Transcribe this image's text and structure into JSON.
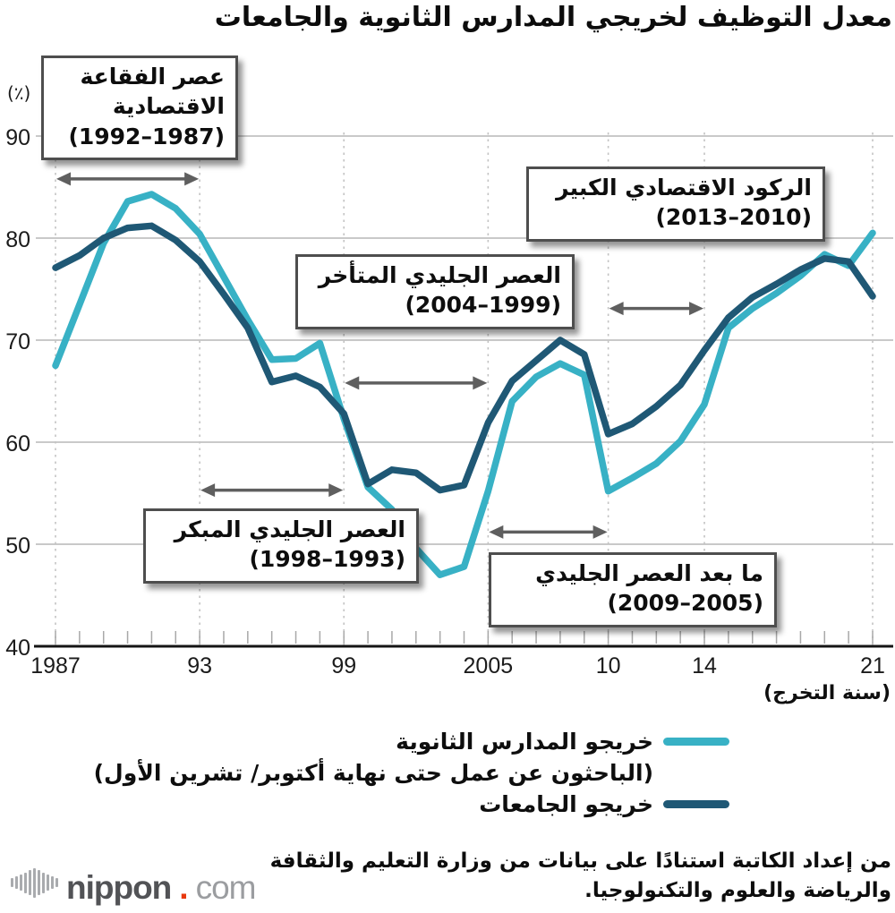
{
  "title": "معدل التوظيف لخريجي المدارس الثانوية والجامعات",
  "y_axis": {
    "unit": "(٪)",
    "tick_labels": [
      "40",
      "50",
      "60",
      "70",
      "80",
      "90"
    ]
  },
  "x_axis": {
    "title": "(سنة التخرج)"
  },
  "legend": [
    {
      "label": "خريجو المدارس الثانوية",
      "sub": "(الباحثون عن عمل حتى نهاية أكتوبر/ تشرين الأول)",
      "color": "#38b1c5"
    },
    {
      "label": "خريجو الجامعات",
      "sub": "",
      "color": "#1f5875"
    }
  ],
  "annotations": [
    {
      "label": "عصر الفقاعة الاقتصادية",
      "years": "(1987–1992)",
      "arrow": {
        "from": 1987,
        "to": 1993,
        "v": 85.8
      }
    },
    {
      "label": "العصر الجليدي المبكر",
      "years": "(1993–1998)",
      "arrow": {
        "from": 1993,
        "to": 1999,
        "v": 55.3
      }
    },
    {
      "label": "العصر الجليدي المتأخر",
      "years": "(1999–2004)",
      "arrow": {
        "from": 1999,
        "to": 2005,
        "v": 65.8
      }
    },
    {
      "label": "ما بعد العصر الجليدي",
      "years": "(2005–2009)",
      "arrow": {
        "from": 2005,
        "to": 2010,
        "v": 51.2
      }
    },
    {
      "label": "الركود الاقتصادي الكبير",
      "years": "(2010–2013)",
      "arrow": {
        "from": 2010,
        "to": 2014,
        "v": 73.1
      }
    }
  ],
  "footer": {
    "source": "من إعداد الكاتبة استنادًا على بيانات من وزارة التعليم والثقافة والرياضة والعلوم والتكنولوجيا.",
    "logo": {
      "name": "nippon",
      "dot": ".",
      "tld": "com"
    }
  },
  "chart_data": {
    "type": "line",
    "title": "معدل التوظيف لخريجي المدارس الثانوية والجامعات",
    "xlabel": "(سنة التخرج)",
    "ylabel": "(٪)",
    "xlim": [
      1987,
      2021
    ],
    "ylim": [
      40,
      90
    ],
    "y_ticks": [
      40,
      50,
      60,
      70,
      80,
      90
    ],
    "x_ticks": [
      {
        "year": 1987,
        "label": "1987"
      },
      {
        "year": 1993,
        "label": "93"
      },
      {
        "year": 1999,
        "label": "99"
      },
      {
        "year": 2005,
        "label": "2005"
      },
      {
        "year": 2010,
        "label": "10"
      },
      {
        "year": 2014,
        "label": "14"
      },
      {
        "year": 2021,
        "label": "21"
      }
    ],
    "x": [
      1987,
      1988,
      1989,
      1990,
      1991,
      1992,
      1993,
      1994,
      1995,
      1996,
      1997,
      1998,
      1999,
      2000,
      2001,
      2002,
      2003,
      2004,
      2005,
      2006,
      2007,
      2008,
      2009,
      2010,
      2011,
      2012,
      2013,
      2014,
      2015,
      2016,
      2017,
      2018,
      2019,
      2020,
      2021
    ],
    "series": [
      {
        "key": "highschool-graduates",
        "name": "خريجو المدارس الثانوية",
        "color": "#38b1c5",
        "values": [
          67.5,
          73.5,
          79.5,
          83.6,
          84.3,
          82.9,
          80.4,
          76.2,
          72.0,
          68.1,
          68.2,
          69.7,
          62.3,
          55.6,
          53.4,
          49.6,
          47.0,
          47.8,
          55.2,
          64.0,
          66.4,
          67.7,
          66.6,
          55.2,
          56.5,
          57.9,
          60.1,
          63.7,
          71.2,
          73.1,
          74.6,
          76.3,
          78.4,
          77.3,
          80.5
        ]
      },
      {
        "key": "university-graduates",
        "name": "خريجو الجامعات",
        "color": "#1f5875",
        "values": [
          77.1,
          78.3,
          80.0,
          81.0,
          81.2,
          79.8,
          77.7,
          74.5,
          71.2,
          65.9,
          66.5,
          65.4,
          62.8,
          55.9,
          57.3,
          57.0,
          55.3,
          55.8,
          61.9,
          66.0,
          68.0,
          70.0,
          68.6,
          60.8,
          61.8,
          63.5,
          65.6,
          69.0,
          72.2,
          74.2,
          75.5,
          76.9,
          78.0,
          77.7,
          74.3
        ]
      }
    ],
    "grid": {
      "horizontal": "solid",
      "vertical": "dashed-at-labeled-ticks"
    },
    "legend_position": "bottom"
  }
}
